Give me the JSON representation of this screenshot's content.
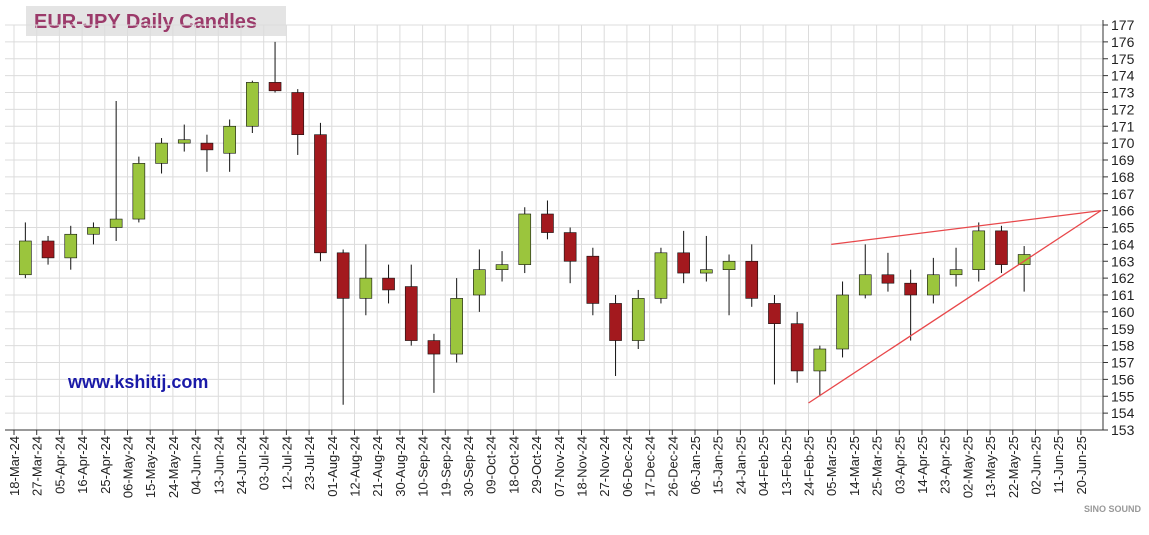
{
  "chart_data": {
    "type": "candlestick",
    "title": "EUR-JPY Daily  Candles",
    "watermark": "www.kshitij.com",
    "logo_text": "SINO SOUND",
    "categories": [
      "18-Mar-24",
      "27-Mar-24",
      "05-Apr-24",
      "16-Apr-24",
      "25-Apr-24",
      "06-May-24",
      "15-May-24",
      "24-May-24",
      "04-Jun-24",
      "13-Jun-24",
      "24-Jun-24",
      "03-Jul-24",
      "12-Jul-24",
      "23-Jul-24",
      "01-Aug-24",
      "12-Aug-24",
      "21-Aug-24",
      "30-Aug-24",
      "10-Sep-24",
      "19-Sep-24",
      "30-Sep-24",
      "09-Oct-24",
      "18-Oct-24",
      "29-Oct-24",
      "07-Nov-24",
      "18-Nov-24",
      "27-Nov-24",
      "06-Dec-24",
      "17-Dec-24",
      "26-Dec-24",
      "06-Jan-25",
      "15-Jan-25",
      "24-Jan-25",
      "04-Feb-25",
      "13-Feb-25",
      "24-Feb-25",
      "05-Mar-25",
      "14-Mar-25",
      "25-Mar-25",
      "03-Apr-25",
      "14-Apr-25",
      "23-Apr-25",
      "02-May-25",
      "13-May-25",
      "22-May-25",
      "02-Jun-25",
      "11-Jun-25",
      "20-Jun-25"
    ],
    "open": [
      162.2,
      164.2,
      163.2,
      164.6,
      165,
      165.5,
      168.8,
      170,
      170,
      169.4,
      171,
      173.6,
      173,
      170.5,
      163.5,
      160.8,
      162,
      161.5,
      158.3,
      157.5,
      161,
      162.5,
      162.8,
      165.8,
      164.7,
      163.3,
      160.5,
      158.3,
      160.8,
      163.5,
      162.3,
      162.5,
      163,
      160.5,
      159.3,
      156.5,
      157.8,
      161,
      162.2,
      161.7,
      161,
      162.2,
      162.5,
      164.8,
      162.8,
      null,
      null,
      null
    ],
    "high": [
      165.3,
      164.5,
      165.1,
      165.3,
      172.5,
      169.2,
      170.3,
      171.1,
      170.5,
      171.4,
      173.7,
      176,
      173.2,
      171.2,
      163.7,
      164,
      162.8,
      162.8,
      158.7,
      162,
      163.7,
      163.6,
      166.2,
      166.6,
      165,
      163.8,
      161,
      161.3,
      163.8,
      164.8,
      164.5,
      163.4,
      164,
      161,
      160,
      158,
      161.8,
      164,
      163.5,
      162.5,
      163.2,
      163.8,
      165.3,
      165.1,
      163.9,
      null,
      null,
      null
    ],
    "low": [
      162,
      162.8,
      162.5,
      164,
      164.2,
      165.3,
      168.2,
      169.5,
      168.3,
      168.3,
      170.6,
      173,
      169.3,
      163,
      154.5,
      159.8,
      160.5,
      158,
      155.2,
      157,
      160,
      161.8,
      162.3,
      164.3,
      161.7,
      159.8,
      156.2,
      157.8,
      160.5,
      161.7,
      161.8,
      159.8,
      160.3,
      155.7,
      155.8,
      155,
      157.3,
      160.8,
      161.2,
      158.3,
      160.5,
      161.5,
      161.8,
      162.3,
      161.2,
      null,
      null,
      null
    ],
    "close": [
      164.2,
      163.2,
      164.6,
      165,
      165.5,
      168.8,
      170,
      170.2,
      169.6,
      171,
      173.6,
      173.1,
      170.5,
      163.5,
      160.8,
      162,
      161.3,
      158.3,
      157.5,
      160.8,
      162.5,
      162.8,
      165.8,
      164.7,
      163,
      160.5,
      158.3,
      160.8,
      163.5,
      162.3,
      162.5,
      163,
      160.8,
      159.3,
      156.5,
      157.8,
      161,
      162.2,
      161.7,
      161,
      162.2,
      162.5,
      164.8,
      162.8,
      163.4,
      null,
      null,
      null
    ],
    "up_color": "#9bc53d",
    "down_color": "#a3191e",
    "ylim": [
      153,
      177
    ],
    "yticks": [
      153,
      154,
      155,
      156,
      157,
      158,
      159,
      160,
      161,
      162,
      163,
      164,
      165,
      166,
      167,
      168,
      169,
      170,
      171,
      172,
      173,
      174,
      175,
      176,
      177
    ],
    "grid": true,
    "trendlines": [
      {
        "color": "#e8474a",
        "x": [
          "05-Mar-25",
          "20-Jun-25"
        ],
        "y": [
          164,
          166
        ]
      },
      {
        "color": "#e8474a",
        "x": [
          "24-Feb-25",
          "20-Jun-25"
        ],
        "y": [
          154.6,
          166
        ]
      }
    ]
  }
}
